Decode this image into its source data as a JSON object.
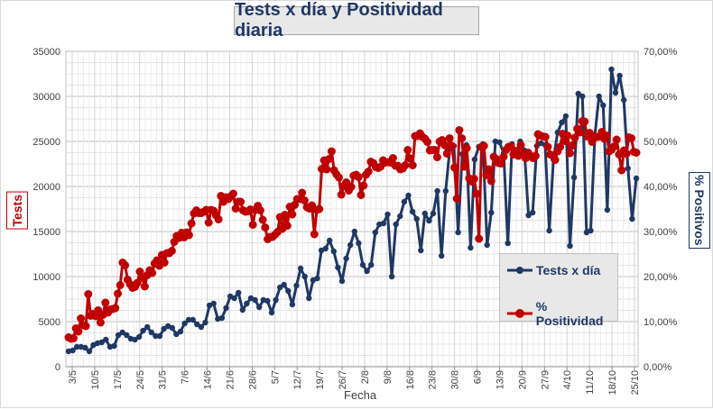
{
  "chart_data": {
    "type": "line",
    "title": "Tests x día y Positividad diaria",
    "xlabel": "Fecha",
    "ylabel": "Tests",
    "y2label": "% Positivos",
    "ylim": [
      0,
      35000
    ],
    "y2lim": [
      0,
      70
    ],
    "yticks": [
      "0",
      "5000",
      "10000",
      "15000",
      "20000",
      "25000",
      "30000",
      "35000"
    ],
    "y2ticks": [
      "0,00%",
      "10,00%",
      "20,00%",
      "30,00%",
      "40,00%",
      "50,00%",
      "60,00%",
      "70,00%"
    ],
    "x_tick_labels": [
      "3/5",
      "10/5",
      "17/5",
      "24/5",
      "31/5",
      "7/6",
      "14/6",
      "21/6",
      "28/6",
      "5/7",
      "12/7",
      "19/7",
      "26/7",
      "2/8",
      "9/8",
      "16/8",
      "23/8",
      "30/8",
      "6/9",
      "13/9",
      "20/9",
      "27/9",
      "4/10",
      "11/10",
      "18/10",
      "25/10"
    ],
    "grid": true,
    "legend_position": "right",
    "colors": {
      "tests": "#1f3864",
      "positividad": "#c00000"
    },
    "series": [
      {
        "name": "Tests x día",
        "axis": "left",
        "values": [
          1700,
          1800,
          2200,
          2200,
          2100,
          1700,
          2400,
          2600,
          2700,
          3000,
          2200,
          2300,
          3500,
          3800,
          3500,
          3100,
          3000,
          3300,
          4000,
          4400,
          3800,
          3400,
          3400,
          4200,
          4500,
          4300,
          3600,
          3900,
          4800,
          5200,
          5200,
          4700,
          4400,
          4900,
          6800,
          7000,
          5300,
          5400,
          6500,
          7800,
          7600,
          8200,
          6300,
          7000,
          7600,
          7400,
          6600,
          7400,
          7300,
          6000,
          7400,
          8800,
          9100,
          8400,
          6900,
          9000,
          10900,
          10000,
          7600,
          9600,
          9800,
          12900,
          13100,
          14000,
          12800,
          11000,
          9500,
          12000,
          13500,
          15000,
          13700,
          11300,
          10600,
          11300,
          14900,
          15800,
          15900,
          16900,
          10000,
          15800,
          16700,
          18300,
          19000,
          17200,
          16400,
          12900,
          17000,
          16200,
          17000,
          19500,
          12300,
          19500,
          24200,
          24500,
          14900,
          23600,
          24600,
          13200,
          23000,
          24400,
          24700,
          13500,
          17100,
          25000,
          24900,
          23700,
          13700,
          24700,
          23600,
          25000,
          24000,
          16800,
          17100,
          24500,
          24800,
          24600,
          15100,
          23000,
          26000,
          27100,
          27800,
          13400,
          21000,
          30300,
          30000,
          14900,
          15100,
          25700,
          30000,
          29000,
          17400,
          33000,
          30400,
          32300,
          29600,
          22000,
          16400,
          20900
        ]
      },
      {
        "name": "% Positividad",
        "axis": "right",
        "values": [
          6.5,
          6.2,
          6.3,
          8.5,
          7.8,
          10.7,
          9.2,
          9.0,
          16.1,
          11.3,
          11.7,
          11.2,
          12.5,
          9.8,
          11.5,
          14.2,
          12.0,
          12.7,
          12.8,
          13.0,
          16.2,
          18.1,
          23.1,
          22.5,
          19.3,
          18.3,
          17.5,
          17.7,
          18.6,
          21.1,
          19.7,
          17.8,
          20.3,
          21.4,
          20.8,
          22.9,
          23.6,
          22.4,
          24.8,
          23.1,
          25.2,
          25.2,
          25.7,
          27.7,
          29.0,
          28.6,
          29.7,
          28.7,
          29.8,
          29.2,
          31.8,
          34.0,
          34.7,
          34.1,
          34.1,
          34.4,
          34.8,
          32.0,
          34.8,
          34.6,
          33.6,
          32.7,
          37.9,
          36.6,
          37.6,
          37.2,
          37.8,
          38.4,
          35.1,
          36.6,
          36.6,
          34.7,
          34.4,
          34.5,
          34.9,
          31.5,
          34.8,
          35.7,
          34.7,
          32.6,
          30.9,
          28.3,
          28.8,
          28.8,
          29.3,
          29.9,
          33.2,
          30.6,
          33.7,
          31.3,
          35.5,
          33.8,
          35.9,
          37.2,
          37.2,
          38.6,
          36.9,
          35.4,
          35.1,
          35.8,
          29.4,
          34.8,
          35.0,
          43.9,
          45.8,
          43.8,
          46.1,
          47.8,
          43.6,
          42.7,
          42.0,
          38.2,
          40.1,
          40.9,
          39.1,
          39.9,
          42.4,
          42.6,
          42.1,
          38.1,
          40.2,
          42.6,
          43.3,
          45.5,
          45.2,
          44.3,
          44.1,
          44.4,
          45.8,
          45.3,
          45.4,
          45.3,
          46.3,
          44.6,
          44.6,
          43.8,
          44.0,
          44.7,
          48.1,
          46.2,
          44.7,
          51.2,
          51.2,
          51.8,
          51.0,
          50.6,
          49.9,
          48.0,
          48.1,
          48.1,
          46.5,
          50.0,
          50.3,
          49.2,
          47.3,
          50.7,
          49.0,
          44.2,
          37.3,
          52.5,
          50.7,
          44.4,
          48.5,
          41.8,
          41.1,
          41.7,
          38.4,
          28.4,
          48.8,
          49.0,
          42.5,
          43.8,
          41.2,
          46.6,
          46.1,
          45.2,
          45.1,
          46.6,
          48.1,
          48.8,
          48.9,
          47.1,
          47.9,
          46.8,
          49.2,
          47.0,
          46.3,
          47.5,
          46.8,
          46.3,
          46.8,
          51.6,
          51.3,
          51.1,
          51.0,
          48.8,
          47.1,
          46.9,
          45.9,
          47.8,
          48.8,
          51.7,
          50.1,
          51.3,
          47.4,
          49.1,
          50.8,
          52.8,
          52.0,
          54.5,
          54.4,
          51.1,
          51.9,
          49.9,
          51.1,
          51.0,
          51.1,
          52.1,
          50.6,
          51.3,
          47.8,
          48.2,
          48.9,
          50.4,
          47.1,
          43.6,
          48.0,
          47.3,
          50.9,
          50.7,
          47.7,
          47.5
        ]
      }
    ]
  }
}
